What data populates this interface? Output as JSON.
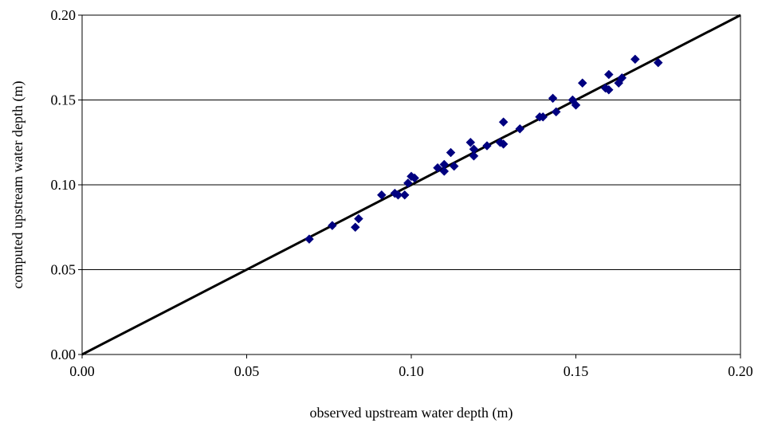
{
  "chart_data": {
    "type": "scatter",
    "title": "",
    "xlabel": "observed upstream water depth (m)",
    "ylabel": "computed upstream water depth (m)",
    "xlim": [
      0.0,
      0.2
    ],
    "ylim": [
      0.0,
      0.2
    ],
    "x_ticks": [
      "0.00",
      "0.05",
      "0.10",
      "0.15",
      "0.20"
    ],
    "y_ticks": [
      "0.00",
      "0.05",
      "0.10",
      "0.15",
      "0.20"
    ],
    "grid": "horizontal",
    "legend": "none",
    "marker": "diamond",
    "marker_color": "#000080",
    "reference_line": {
      "x": [
        0.0,
        0.2
      ],
      "y": [
        0.0,
        0.2
      ],
      "color": "#000000"
    },
    "points": [
      {
        "x": 0.069,
        "y": 0.068
      },
      {
        "x": 0.076,
        "y": 0.076
      },
      {
        "x": 0.083,
        "y": 0.075
      },
      {
        "x": 0.084,
        "y": 0.08
      },
      {
        "x": 0.091,
        "y": 0.094
      },
      {
        "x": 0.095,
        "y": 0.095
      },
      {
        "x": 0.096,
        "y": 0.094
      },
      {
        "x": 0.098,
        "y": 0.094
      },
      {
        "x": 0.099,
        "y": 0.101
      },
      {
        "x": 0.1,
        "y": 0.105
      },
      {
        "x": 0.101,
        "y": 0.104
      },
      {
        "x": 0.108,
        "y": 0.11
      },
      {
        "x": 0.11,
        "y": 0.112
      },
      {
        "x": 0.11,
        "y": 0.108
      },
      {
        "x": 0.112,
        "y": 0.119
      },
      {
        "x": 0.113,
        "y": 0.111
      },
      {
        "x": 0.118,
        "y": 0.125
      },
      {
        "x": 0.119,
        "y": 0.121
      },
      {
        "x": 0.119,
        "y": 0.117
      },
      {
        "x": 0.123,
        "y": 0.123
      },
      {
        "x": 0.127,
        "y": 0.125
      },
      {
        "x": 0.128,
        "y": 0.124
      },
      {
        "x": 0.128,
        "y": 0.137
      },
      {
        "x": 0.133,
        "y": 0.133
      },
      {
        "x": 0.139,
        "y": 0.14
      },
      {
        "x": 0.14,
        "y": 0.14
      },
      {
        "x": 0.143,
        "y": 0.151
      },
      {
        "x": 0.144,
        "y": 0.143
      },
      {
        "x": 0.149,
        "y": 0.15
      },
      {
        "x": 0.15,
        "y": 0.147
      },
      {
        "x": 0.152,
        "y": 0.16
      },
      {
        "x": 0.159,
        "y": 0.157
      },
      {
        "x": 0.16,
        "y": 0.165
      },
      {
        "x": 0.16,
        "y": 0.156
      },
      {
        "x": 0.163,
        "y": 0.16
      },
      {
        "x": 0.164,
        "y": 0.163
      },
      {
        "x": 0.168,
        "y": 0.174
      },
      {
        "x": 0.175,
        "y": 0.172
      }
    ]
  }
}
